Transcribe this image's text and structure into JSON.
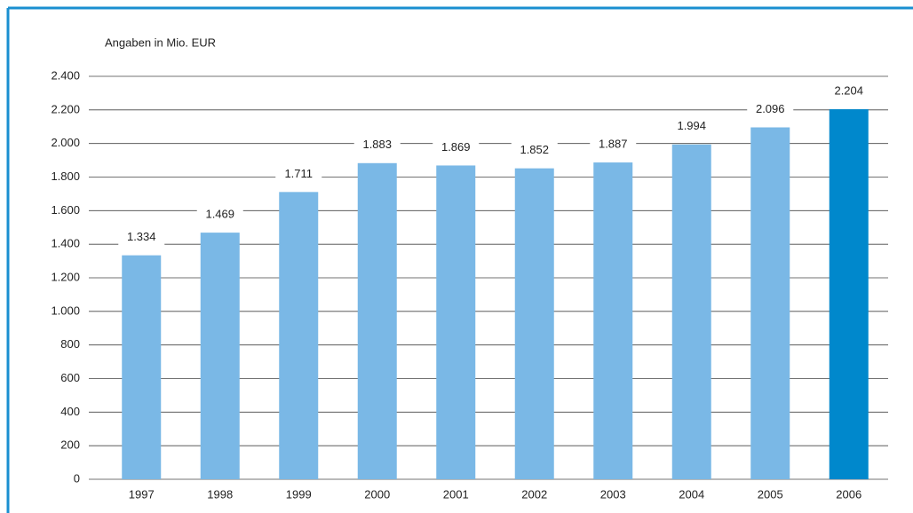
{
  "chart_data": {
    "type": "bar",
    "unit_label": "Angaben in Mio. EUR",
    "categories": [
      "1997",
      "1998",
      "1999",
      "2000",
      "2001",
      "2002",
      "2003",
      "2004",
      "2005",
      "2006"
    ],
    "values": [
      1334,
      1469,
      1711,
      1883,
      1869,
      1852,
      1887,
      1994,
      2096,
      2204
    ],
    "value_labels": [
      "1.334",
      "1.469",
      "1.711",
      "1.883",
      "1.869",
      "1.852",
      "1.887",
      "1.994",
      "2.096",
      "2.204"
    ],
    "colors": [
      "#7ab8e6",
      "#7ab8e6",
      "#7ab8e6",
      "#7ab8e6",
      "#7ab8e6",
      "#7ab8e6",
      "#7ab8e6",
      "#7ab8e6",
      "#7ab8e6",
      "#0088cc"
    ],
    "ylim": [
      0,
      2400
    ],
    "yticks": [
      0,
      200,
      400,
      600,
      800,
      {
        "value": 1000,
        "label": "1.000"
      },
      {
        "value": 1200,
        "label": "1.200"
      },
      {
        "value": 1400,
        "label": "1.400"
      },
      {
        "value": 1600,
        "label": "1.600"
      },
      {
        "value": 1800,
        "label": "1.800"
      },
      {
        "value": 2000,
        "label": "2.000"
      },
      {
        "value": 2200,
        "label": "2.200"
      },
      {
        "value": 2400,
        "label": "2.400"
      }
    ],
    "grid": true
  }
}
